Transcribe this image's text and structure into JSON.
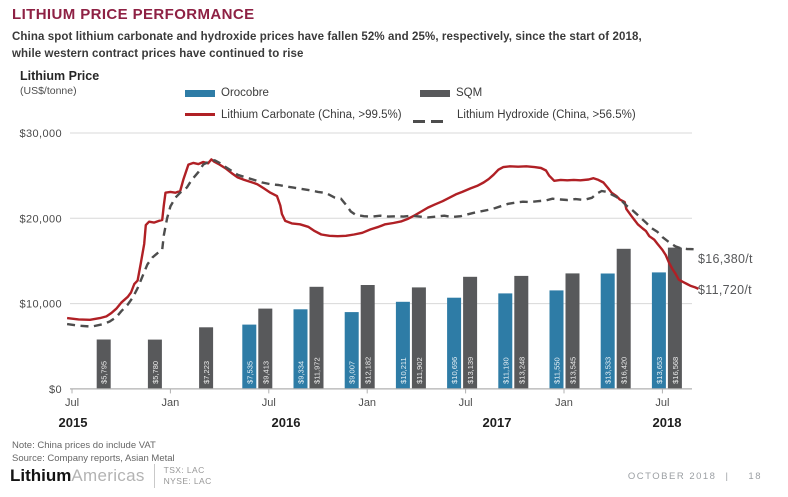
{
  "header": {
    "title": "LITHIUM PRICE PERFORMANCE",
    "subtitle_line1": "China spot lithium carbonate and hydroxide prices have fallen 52% and 25%, respectively, since the start of 2018,",
    "subtitle_line2": "while western contract prices have continued to rise"
  },
  "axis_title": {
    "line1": "Lithium Price",
    "line2": "(US$/tonne)"
  },
  "legend": {
    "orocobre": "Orocobre",
    "sqm": "SQM",
    "carbonate": "Lithium Carbonate (China, >99.5%)",
    "hydroxide": "Lithium Hydroxide (China, >56.5%)"
  },
  "colors": {
    "title_maroon": "#8E2144",
    "orocobre_blue": "#2E7CA6",
    "sqm_gray": "#58595B",
    "carbonate_red": "#B02025",
    "hydroxide_gray": "#4D4D4D"
  },
  "chart_data": {
    "type": "bar+line",
    "title": "Lithium Price (US$/tonne)",
    "ylabel": "US$/tonne",
    "ylim": [
      0,
      30000
    ],
    "grid": "horizontal",
    "legend_position": "top",
    "y_ticks": [
      {
        "value": 30000,
        "label": "$30,000"
      },
      {
        "value": 20000,
        "label": "$20,000"
      },
      {
        "value": 10000,
        "label": "$10,000"
      },
      {
        "value": 0,
        "label": "$0"
      }
    ],
    "x_ticks": [
      {
        "month": 0,
        "label": "Jul"
      },
      {
        "month": 6,
        "label": "Jan"
      },
      {
        "month": 12,
        "label": "Jul"
      },
      {
        "month": 18,
        "label": "Jan"
      },
      {
        "month": 24,
        "label": "Jul"
      },
      {
        "month": 30,
        "label": "Jan"
      },
      {
        "month": 36,
        "label": "Jul"
      }
    ],
    "years": [
      "2015",
      "2016",
      "2017",
      "2018"
    ],
    "bars": {
      "unit": "US$/tonne quarterly realized price",
      "quarters": [
        {
          "orocobre": null,
          "orocobre_label": null,
          "sqm": 5795,
          "sqm_label": "$5,795"
        },
        {
          "orocobre": null,
          "orocobre_label": null,
          "sqm": 5780,
          "sqm_label": "$5,780"
        },
        {
          "orocobre": null,
          "orocobre_label": null,
          "sqm": 7223,
          "sqm_label": "$7,223"
        },
        {
          "orocobre": 7535,
          "orocobre_label": "$7,535",
          "sqm": 9413,
          "sqm_label": "$9,413"
        },
        {
          "orocobre": 9334,
          "orocobre_label": "$9,334",
          "sqm": 11972,
          "sqm_label": "$11,972"
        },
        {
          "orocobre": 9007,
          "orocobre_label": "$9,007",
          "sqm": 12182,
          "sqm_label": "$12,182"
        },
        {
          "orocobre": 10211,
          "orocobre_label": "$10,211",
          "sqm": 11902,
          "sqm_label": "$11,902"
        },
        {
          "orocobre": 10696,
          "orocobre_label": "$10,696",
          "sqm": 13139,
          "sqm_label": "$13,139"
        },
        {
          "orocobre": 11190,
          "orocobre_label": "$11,190",
          "sqm": 13248,
          "sqm_label": "$13,248"
        },
        {
          "orocobre": 11550,
          "orocobre_label": "$11,550",
          "sqm": 13545,
          "sqm_label": "$13,545"
        },
        {
          "orocobre": 13533,
          "orocobre_label": "$13,533",
          "sqm": 16420,
          "sqm_label": "$16,420"
        },
        {
          "orocobre": 13653,
          "orocobre_label": "$13,653",
          "sqm": 16568,
          "sqm_label": "$16,568"
        }
      ]
    },
    "series": [
      {
        "name": "Lithium Carbonate (China, >99.5%)",
        "style": "solid",
        "color": "#B02025",
        "x_unit": "months since Jul 2015",
        "points": [
          [
            -0.3,
            8300
          ],
          [
            0.4,
            8150
          ],
          [
            1.1,
            8100
          ],
          [
            1.7,
            8300
          ],
          [
            2.1,
            8500
          ],
          [
            2.4,
            8900
          ],
          [
            2.7,
            9400
          ],
          [
            3.0,
            10100
          ],
          [
            3.4,
            10800
          ],
          [
            3.6,
            11300
          ],
          [
            3.8,
            12300
          ],
          [
            4.0,
            12700
          ],
          [
            4.2,
            14800
          ],
          [
            4.4,
            17000
          ],
          [
            4.5,
            19200
          ],
          [
            4.7,
            19600
          ],
          [
            5.0,
            19500
          ],
          [
            5.3,
            19700
          ],
          [
            5.5,
            19800
          ],
          [
            5.6,
            21500
          ],
          [
            5.7,
            23000
          ],
          [
            6.0,
            23100
          ],
          [
            6.3,
            23000
          ],
          [
            6.6,
            23200
          ],
          [
            6.8,
            24600
          ],
          [
            7.1,
            26300
          ],
          [
            7.4,
            26500
          ],
          [
            7.7,
            26350
          ],
          [
            8.0,
            26600
          ],
          [
            8.3,
            26450
          ],
          [
            8.5,
            26900
          ],
          [
            8.7,
            26600
          ],
          [
            9.0,
            26300
          ],
          [
            9.4,
            25800
          ],
          [
            9.8,
            25200
          ],
          [
            10.1,
            24800
          ],
          [
            10.5,
            24500
          ],
          [
            11.0,
            24200
          ],
          [
            11.3,
            24000
          ],
          [
            11.7,
            23500
          ],
          [
            12.1,
            23000
          ],
          [
            12.5,
            22600
          ],
          [
            12.7,
            21500
          ],
          [
            12.8,
            20500
          ],
          [
            13.0,
            19700
          ],
          [
            13.4,
            19400
          ],
          [
            13.9,
            19300
          ],
          [
            14.4,
            19000
          ],
          [
            14.8,
            18500
          ],
          [
            15.2,
            18100
          ],
          [
            15.7,
            17950
          ],
          [
            16.2,
            17900
          ],
          [
            16.7,
            17950
          ],
          [
            17.2,
            18100
          ],
          [
            17.7,
            18300
          ],
          [
            18.2,
            18700
          ],
          [
            18.7,
            19000
          ],
          [
            19.1,
            19300
          ],
          [
            19.6,
            19450
          ],
          [
            20.1,
            19650
          ],
          [
            20.5,
            19950
          ],
          [
            20.9,
            20350
          ],
          [
            21.3,
            20800
          ],
          [
            21.7,
            21250
          ],
          [
            22.1,
            21600
          ],
          [
            22.6,
            22000
          ],
          [
            23.0,
            22400
          ],
          [
            23.4,
            22800
          ],
          [
            23.8,
            23100
          ],
          [
            24.3,
            23500
          ],
          [
            24.7,
            23800
          ],
          [
            25.1,
            24200
          ],
          [
            25.4,
            24600
          ],
          [
            25.7,
            25100
          ],
          [
            26.0,
            25700
          ],
          [
            26.3,
            26000
          ],
          [
            26.7,
            26100
          ],
          [
            27.2,
            26050
          ],
          [
            27.7,
            26100
          ],
          [
            28.2,
            26000
          ],
          [
            28.6,
            25900
          ],
          [
            28.9,
            25600
          ],
          [
            29.1,
            25000
          ],
          [
            29.4,
            24400
          ],
          [
            29.8,
            24500
          ],
          [
            30.2,
            24450
          ],
          [
            30.6,
            24500
          ],
          [
            31.0,
            24450
          ],
          [
            31.5,
            24550
          ],
          [
            31.8,
            24700
          ],
          [
            32.1,
            24500
          ],
          [
            32.4,
            24200
          ],
          [
            32.7,
            23500
          ],
          [
            32.9,
            23000
          ],
          [
            33.2,
            22600
          ],
          [
            33.4,
            22200
          ],
          [
            33.7,
            21900
          ],
          [
            33.8,
            21100
          ],
          [
            34.1,
            20300
          ],
          [
            34.3,
            19800
          ],
          [
            34.5,
            19300
          ],
          [
            34.8,
            18800
          ],
          [
            35.0,
            18500
          ],
          [
            35.2,
            17900
          ],
          [
            35.5,
            17500
          ],
          [
            35.7,
            17000
          ],
          [
            36.0,
            16300
          ],
          [
            36.2,
            15700
          ],
          [
            36.4,
            14800
          ],
          [
            36.6,
            14100
          ],
          [
            36.8,
            13500
          ],
          [
            37.0,
            12800
          ],
          [
            37.3,
            12500
          ],
          [
            37.5,
            12300
          ],
          [
            37.7,
            12100
          ],
          [
            38.0,
            11900
          ],
          [
            38.2,
            11720
          ]
        ]
      },
      {
        "name": "Lithium Hydroxide (China, >56.5%)",
        "style": "dashed",
        "color": "#4D4D4D",
        "x_unit": "months since Jul 2015",
        "points": [
          [
            -0.3,
            7600
          ],
          [
            0.5,
            7400
          ],
          [
            1.2,
            7300
          ],
          [
            1.9,
            7600
          ],
          [
            2.3,
            7900
          ],
          [
            2.7,
            8400
          ],
          [
            3.0,
            9100
          ],
          [
            3.4,
            9900
          ],
          [
            3.7,
            10700
          ],
          [
            4.0,
            11800
          ],
          [
            4.3,
            13200
          ],
          [
            4.6,
            14600
          ],
          [
            4.9,
            15400
          ],
          [
            5.2,
            15900
          ],
          [
            5.5,
            16300
          ],
          [
            5.6,
            18000
          ],
          [
            5.8,
            20000
          ],
          [
            6.0,
            21400
          ],
          [
            6.3,
            22400
          ],
          [
            6.6,
            23000
          ],
          [
            7.0,
            23600
          ],
          [
            7.3,
            24500
          ],
          [
            7.7,
            25400
          ],
          [
            8.0,
            26300
          ],
          [
            8.4,
            26700
          ],
          [
            8.7,
            26800
          ],
          [
            9.0,
            26500
          ],
          [
            9.3,
            26100
          ],
          [
            9.7,
            25600
          ],
          [
            10.1,
            25100
          ],
          [
            10.6,
            24800
          ],
          [
            11.1,
            24500
          ],
          [
            11.6,
            24200
          ],
          [
            12.1,
            24000
          ],
          [
            12.6,
            23900
          ],
          [
            13.0,
            23750
          ],
          [
            13.5,
            23600
          ],
          [
            14.0,
            23450
          ],
          [
            14.5,
            23300
          ],
          [
            15.0,
            23100
          ],
          [
            15.5,
            22950
          ],
          [
            16.0,
            22450
          ],
          [
            16.4,
            22300
          ],
          [
            16.7,
            21600
          ],
          [
            17.0,
            20800
          ],
          [
            17.3,
            20400
          ],
          [
            17.8,
            20250
          ],
          [
            18.3,
            20200
          ],
          [
            18.8,
            20300
          ],
          [
            19.3,
            20200
          ],
          [
            19.8,
            20250
          ],
          [
            20.2,
            20200
          ],
          [
            20.7,
            20300
          ],
          [
            21.2,
            20200
          ],
          [
            21.7,
            20100
          ],
          [
            22.2,
            20200
          ],
          [
            22.7,
            20300
          ],
          [
            23.2,
            20150
          ],
          [
            23.7,
            20250
          ],
          [
            24.1,
            20450
          ],
          [
            24.5,
            20650
          ],
          [
            24.9,
            20800
          ],
          [
            25.4,
            21000
          ],
          [
            25.8,
            21200
          ],
          [
            26.2,
            21450
          ],
          [
            26.6,
            21700
          ],
          [
            27.1,
            21850
          ],
          [
            27.5,
            21950
          ],
          [
            27.9,
            21900
          ],
          [
            28.4,
            22000
          ],
          [
            28.9,
            22100
          ],
          [
            29.3,
            22300
          ],
          [
            29.8,
            22200
          ],
          [
            30.2,
            22150
          ],
          [
            30.7,
            22250
          ],
          [
            31.2,
            22150
          ],
          [
            31.7,
            22400
          ],
          [
            32.0,
            22900
          ],
          [
            32.3,
            23200
          ],
          [
            32.6,
            23100
          ],
          [
            32.9,
            22800
          ],
          [
            33.2,
            22500
          ],
          [
            33.5,
            22100
          ],
          [
            33.8,
            21500
          ],
          [
            34.2,
            20900
          ],
          [
            34.6,
            20200
          ],
          [
            35.0,
            19500
          ],
          [
            35.3,
            18900
          ],
          [
            35.7,
            18400
          ],
          [
            36.0,
            17800
          ],
          [
            36.4,
            17200
          ],
          [
            36.8,
            16700
          ],
          [
            37.1,
            16500
          ],
          [
            37.5,
            16400
          ],
          [
            37.9,
            16380
          ]
        ]
      }
    ],
    "end_labels": [
      {
        "text": "$16,380/t",
        "value": 16380,
        "series": "Lithium Hydroxide (China, >56.5%)"
      },
      {
        "text": "$11,720/t",
        "value": 11720,
        "series": "Lithium Carbonate (China, >99.5%)"
      }
    ]
  },
  "footnotes": {
    "note": "Note: China prices do include VAT",
    "source": "Source: Company reports, Asian Metal"
  },
  "footer": {
    "logo_bold": "Lithium",
    "logo_light": "Americas",
    "ticker1": "TSX: LAC",
    "ticker2": "NYSE: LAC",
    "date": "OCTOBER 2018",
    "pipe": "|",
    "page": "18"
  }
}
